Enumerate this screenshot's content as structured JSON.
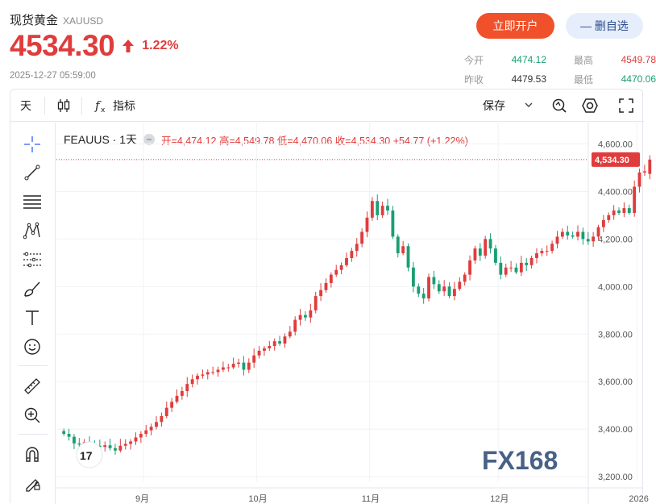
{
  "header": {
    "title": "现货黄金",
    "symbol": "XAUUSD",
    "price": "4534.30",
    "change_pct": "1.22%",
    "timestamp": "2025-12-27 05:59:00"
  },
  "buttons": {
    "open_account": "立即开户",
    "remove_favorite": "— 删自选"
  },
  "stats": {
    "open_label": "今开",
    "open_value": "4474.12",
    "prev_close_label": "昨收",
    "prev_close_value": "4479.53",
    "high_label": "最高",
    "high_value": "4549.78",
    "low_label": "最低",
    "low_value": "4470.06"
  },
  "toolbar": {
    "interval": "天",
    "indicators": "指标",
    "save": "保存"
  },
  "legend": {
    "symbol_interval": "FEAUUS · 1天",
    "ohlc": "开=4,474.12  高=4,549.78  低=4,470.06  收=4,534.30  +54.77 (+1.22%)"
  },
  "watermark": "FX168",
  "colors": {
    "up": "#e03c3c",
    "down": "#1a9e74",
    "accent": "#f0512a"
  },
  "chart_data": {
    "type": "candlestick",
    "x_ticks": [
      "9月",
      "10月",
      "11月",
      "12月",
      "2026"
    ],
    "y_ticks": [
      "3,200.00",
      "3,400.00",
      "3,600.00",
      "3,800.00",
      "4,000.00",
      "4,200.00",
      "4,400.00",
      "4,600.00"
    ],
    "ylim": [
      3180,
      4690
    ],
    "last_price_label": "4,534.30",
    "last_price": 4534.3,
    "closes": [
      3380,
      3368,
      3340,
      3335,
      3345,
      3338,
      3330,
      3325,
      3332,
      3320,
      3310,
      3330,
      3338,
      3348,
      3365,
      3380,
      3395,
      3410,
      3430,
      3455,
      3490,
      3515,
      3540,
      3560,
      3590,
      3610,
      3625,
      3630,
      3640,
      3640,
      3650,
      3660,
      3660,
      3675,
      3680,
      3650,
      3680,
      3710,
      3730,
      3740,
      3750,
      3770,
      3760,
      3790,
      3810,
      3860,
      3880,
      3870,
      3900,
      3960,
      3985,
      4015,
      4050,
      4070,
      4090,
      4120,
      4150,
      4180,
      4230,
      4290,
      4360,
      4300,
      4340,
      4320,
      4210,
      4140,
      4170,
      4080,
      4000,
      3970,
      3950,
      4040,
      4010,
      3980,
      4000,
      3960,
      3990,
      4020,
      4050,
      4110,
      4160,
      4130,
      4200,
      4160,
      4100,
      4050,
      4080,
      4080,
      4060,
      4100,
      4090,
      4120,
      4140,
      4150,
      4150,
      4180,
      4210,
      4230,
      4215,
      4210,
      4230,
      4200,
      4190,
      4210,
      4250,
      4280,
      4300,
      4320,
      4310,
      4330,
      4310,
      4420,
      4480,
      4485,
      4534.3
    ]
  },
  "tool_icons": [
    "crosshair-icon",
    "trendline-icon",
    "fib-lines-icon",
    "pattern-icon",
    "projection-icon",
    "brush-icon",
    "text-icon",
    "emoji-icon",
    "ruler-icon",
    "zoom-in-icon",
    "magnet-icon",
    "lock-pencil-icon"
  ]
}
